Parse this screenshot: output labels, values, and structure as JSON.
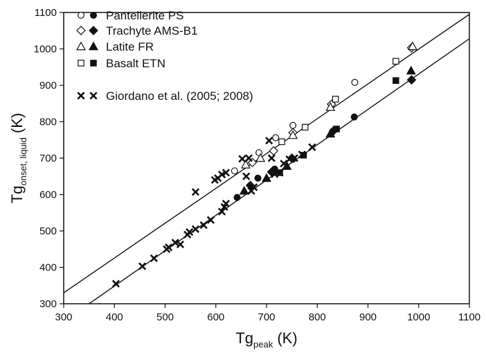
{
  "chart_data": {
    "type": "scatter",
    "title": "",
    "xlabel": {
      "main": "Tg",
      "sub": "peak",
      "unit": " (K)"
    },
    "ylabel": {
      "main": "Tg",
      "sub": "onset, liquid",
      "unit": " (K)"
    },
    "xlim": [
      300,
      1100
    ],
    "ylim": [
      300,
      1100
    ],
    "xticks": [
      300,
      400,
      500,
      600,
      700,
      800,
      900,
      1000,
      1100
    ],
    "yticks": [
      300,
      400,
      500,
      600,
      700,
      800,
      900,
      1000,
      1100
    ],
    "grid": false,
    "legend_position": "top-left",
    "lines": [
      {
        "x": [
          300,
          1100
        ],
        "y": [
          330,
          1095
        ]
      },
      {
        "x": [
          350,
          1100
        ],
        "y": [
          300,
          1028
        ]
      }
    ],
    "series": [
      {
        "name": "Pantellerite PS",
        "marker": "circle",
        "open": [
          [
            637,
            665
          ],
          [
            685,
            715
          ],
          [
            718,
            756
          ],
          [
            752,
            790
          ],
          [
            874,
            908
          ]
        ],
        "filled": [
          [
            642,
            592
          ],
          [
            683,
            645
          ],
          [
            716,
            670
          ],
          [
            752,
            697
          ],
          [
            873,
            813
          ]
        ]
      },
      {
        "name": "Trachyte AMS-B1",
        "marker": "diamond",
        "open": [
          [
            672,
            688
          ],
          [
            714,
            720
          ],
          [
            752,
            770
          ],
          [
            828,
            848
          ],
          [
            986,
            1003
          ]
        ],
        "filled": [
          [
            668,
            625
          ],
          [
            710,
            662
          ],
          [
            750,
            700
          ],
          [
            832,
            775
          ],
          [
            986,
            915
          ]
        ]
      },
      {
        "name": "Latite FR",
        "marker": "triangle",
        "open": [
          [
            659,
            682
          ],
          [
            688,
            700
          ],
          [
            752,
            763
          ],
          [
            826,
            840
          ],
          [
            988,
            1007
          ]
        ],
        "filled": [
          [
            656,
            610
          ],
          [
            700,
            645
          ],
          [
            740,
            678
          ],
          [
            826,
            767
          ],
          [
            985,
            940
          ]
        ]
      },
      {
        "name": "Basalt ETN",
        "marker": "square",
        "open": [
          [
            730,
            745
          ],
          [
            776,
            785
          ],
          [
            836,
            862
          ],
          [
            955,
            966
          ]
        ],
        "filled": [
          [
            726,
            660
          ],
          [
            773,
            708
          ],
          [
            838,
            780
          ],
          [
            955,
            913
          ]
        ]
      },
      {
        "name": "Giordano et al. (2005; 2008)",
        "marker": "cross",
        "open": [],
        "filled": [
          [
            403,
            355
          ],
          [
            455,
            403
          ],
          [
            478,
            425
          ],
          [
            503,
            450
          ],
          [
            507,
            455
          ],
          [
            520,
            468
          ],
          [
            530,
            463
          ],
          [
            544,
            490
          ],
          [
            548,
            497
          ],
          [
            560,
            505
          ],
          [
            576,
            516
          ],
          [
            590,
            530
          ],
          [
            612,
            553
          ],
          [
            617,
            566
          ],
          [
            620,
            575
          ],
          [
            660,
            650
          ],
          [
            665,
            700
          ],
          [
            670,
            610
          ],
          [
            675,
            620
          ],
          [
            705,
            748
          ],
          [
            710,
            700
          ],
          [
            716,
            656
          ],
          [
            726,
            660
          ],
          [
            734,
            685
          ],
          [
            745,
            697
          ],
          [
            755,
            700
          ],
          [
            770,
            710
          ],
          [
            790,
            730
          ],
          [
            598,
            640
          ],
          [
            604,
            645
          ],
          [
            612,
            655
          ],
          [
            620,
            660
          ],
          [
            560,
            607
          ],
          [
            652,
            698
          ]
        ]
      }
    ]
  }
}
